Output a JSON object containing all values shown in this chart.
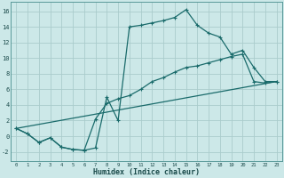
{
  "xlabel": "Humidex (Indice chaleur)",
  "bg_color": "#cce8e8",
  "grid_color": "#aacccc",
  "line_color": "#1a6b6b",
  "xlim": [
    -0.5,
    23.5
  ],
  "ylim": [
    -3.2,
    17.2
  ],
  "xticks": [
    0,
    1,
    2,
    3,
    4,
    5,
    6,
    7,
    8,
    9,
    10,
    11,
    12,
    13,
    14,
    15,
    16,
    17,
    18,
    19,
    20,
    21,
    22,
    23
  ],
  "yticks": [
    -2,
    0,
    2,
    4,
    6,
    8,
    10,
    12,
    14,
    16
  ],
  "line1_x": [
    0,
    1,
    2,
    3,
    4,
    5,
    6,
    7,
    8,
    9,
    10,
    11,
    12,
    13,
    14,
    15,
    16,
    17,
    18,
    19,
    20,
    21,
    22,
    23
  ],
  "line1_y": [
    1.0,
    0.3,
    -0.8,
    -0.2,
    -1.4,
    -1.7,
    -1.8,
    -1.5,
    5.0,
    2.0,
    14.0,
    14.2,
    14.5,
    14.8,
    15.2,
    16.2,
    14.2,
    13.2,
    12.7,
    10.5,
    11.0,
    8.8,
    7.0,
    7.0
  ],
  "line2_x": [
    0,
    1,
    2,
    3,
    4,
    5,
    6,
    7,
    8,
    9,
    10,
    11,
    12,
    13,
    14,
    15,
    16,
    17,
    18,
    19,
    20,
    21,
    22,
    23
  ],
  "line2_y": [
    1.0,
    0.3,
    -0.8,
    -0.2,
    -1.4,
    -1.7,
    -1.8,
    2.2,
    4.2,
    4.8,
    5.2,
    6.0,
    7.0,
    7.5,
    8.2,
    8.8,
    9.0,
    9.4,
    9.8,
    10.2,
    10.5,
    7.0,
    6.8,
    7.0
  ],
  "line3_x": [
    0,
    23
  ],
  "line3_y": [
    1.0,
    7.0
  ]
}
